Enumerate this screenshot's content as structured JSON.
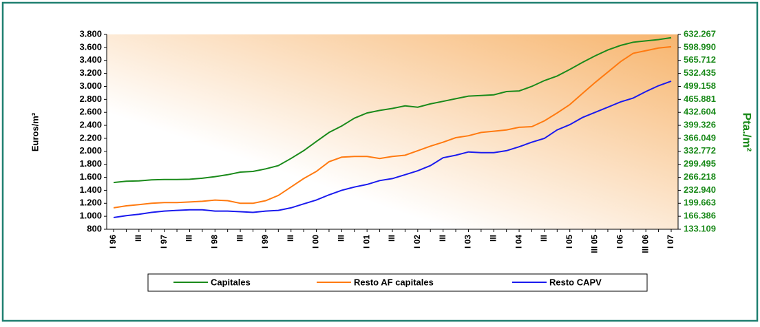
{
  "chart_data": {
    "type": "line",
    "y_label": "Euros/m²",
    "y2_label": "Pta./m²",
    "categories": [
      "I 96",
      null,
      "III",
      null,
      "I 97",
      null,
      "III",
      null,
      "I 98",
      null,
      "III",
      null,
      "I 99",
      null,
      "III",
      null,
      "I 00",
      null,
      "III",
      null,
      "I 01",
      null,
      "III",
      null,
      "I 02",
      null,
      "III",
      null,
      "I 03",
      null,
      "III",
      null,
      "I 04",
      null,
      "III",
      null,
      "I 05",
      null,
      "III 05",
      null,
      "I 06",
      null,
      "III 06",
      null,
      "I 07"
    ],
    "series": [
      {
        "name": "Capitales",
        "color": "#1a8a1a",
        "values": [
          1520,
          1540,
          1545,
          1560,
          1565,
          1565,
          1570,
          1585,
          1610,
          1640,
          1680,
          1690,
          1730,
          1780,
          1890,
          2010,
          2150,
          2290,
          2390,
          2510,
          2590,
          2630,
          2660,
          2700,
          2680,
          2730,
          2770,
          2810,
          2850,
          2860,
          2870,
          2920,
          2930,
          3000,
          3090,
          3160,
          3260,
          3370,
          3470,
          3560,
          3630,
          3680,
          3700,
          3720,
          3750
        ]
      },
      {
        "name": "Resto AF capitales",
        "color": "#ff7a10",
        "values": [
          1130,
          1160,
          1180,
          1200,
          1210,
          1210,
          1220,
          1230,
          1250,
          1240,
          1200,
          1200,
          1240,
          1320,
          1450,
          1580,
          1690,
          1840,
          1910,
          1920,
          1920,
          1890,
          1920,
          1940,
          2010,
          2080,
          2140,
          2210,
          2240,
          2290,
          2310,
          2330,
          2370,
          2380,
          2470,
          2590,
          2720,
          2890,
          3060,
          3220,
          3380,
          3510,
          3550,
          3590,
          3610
        ]
      },
      {
        "name": "Resto CAPV",
        "color": "#1a1aee",
        "values": [
          980,
          1010,
          1030,
          1060,
          1080,
          1090,
          1100,
          1100,
          1080,
          1080,
          1070,
          1060,
          1080,
          1090,
          1130,
          1190,
          1250,
          1330,
          1400,
          1450,
          1490,
          1550,
          1580,
          1640,
          1700,
          1780,
          1900,
          1940,
          1990,
          1980,
          1980,
          2010,
          2070,
          2140,
          2200,
          2330,
          2410,
          2520,
          2600,
          2680,
          2760,
          2820,
          2920,
          3010,
          3080
        ]
      }
    ],
    "ylim": [
      800,
      3800
    ],
    "yticks": [
      {
        "value": 800,
        "label": "800"
      },
      {
        "value": 1000,
        "label": "1.000"
      },
      {
        "value": 1200,
        "label": "1.200"
      },
      {
        "value": 1400,
        "label": "1.400"
      },
      {
        "value": 1600,
        "label": "1.600"
      },
      {
        "value": 1800,
        "label": "1.800"
      },
      {
        "value": 2000,
        "label": "2.000"
      },
      {
        "value": 2200,
        "label": "2.200"
      },
      {
        "value": 2400,
        "label": "2.400"
      },
      {
        "value": 2600,
        "label": "2.600"
      },
      {
        "value": 2800,
        "label": "2.800"
      },
      {
        "value": 3000,
        "label": "3.000"
      },
      {
        "value": 3200,
        "label": "3.200"
      },
      {
        "value": 3400,
        "label": "3.400"
      },
      {
        "value": 3600,
        "label": "3.600"
      },
      {
        "value": 3800,
        "label": "3.800"
      }
    ],
    "y2lim": [
      133109,
      632267
    ],
    "y2ticks": [
      {
        "value": 133109,
        "label": "133.109"
      },
      {
        "value": 166386,
        "label": "166.386"
      },
      {
        "value": 199663,
        "label": "199.663"
      },
      {
        "value": 232940,
        "label": "232.940"
      },
      {
        "value": 266218,
        "label": "266.218"
      },
      {
        "value": 299495,
        "label": "299.495"
      },
      {
        "value": 332772,
        "label": "332.772"
      },
      {
        "value": 366049,
        "label": "366.049"
      },
      {
        "value": 399326,
        "label": "399.326"
      },
      {
        "value": 432604,
        "label": "432.604"
      },
      {
        "value": 465881,
        "label": "465.881"
      },
      {
        "value": 499158,
        "label": "499.158"
      },
      {
        "value": 532435,
        "label": "532.435"
      },
      {
        "value": 565712,
        "label": "565.712"
      },
      {
        "value": 598990,
        "label": "598.990"
      },
      {
        "value": 632267,
        "label": "632.267"
      }
    ],
    "y2_color": "#1a8a1a",
    "legend": "bottom"
  }
}
